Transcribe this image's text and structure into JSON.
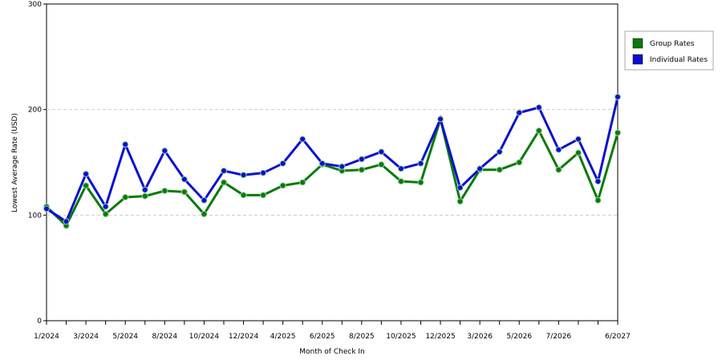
{
  "chart_data": {
    "type": "line",
    "x_label": "Month of Check In",
    "y_label": "Lowest Average Rate (USD)",
    "categories": [
      "1/2024",
      null,
      "3/2024",
      null,
      "5/2024",
      null,
      "8/2024",
      null,
      "10/2024",
      null,
      "12/2024",
      null,
      "4/2025",
      null,
      "6/2025",
      null,
      "8/2025",
      null,
      "10/2025",
      null,
      "12/2025",
      null,
      "3/2026",
      null,
      "5/2026",
      null,
      "7/2026",
      null,
      null,
      "6/2027"
    ],
    "series": [
      {
        "name": "Group Rates",
        "color": "#0a7a0a",
        "values": [
          108,
          90,
          128,
          101,
          117,
          118,
          123,
          122,
          101,
          131,
          119,
          119,
          128,
          131,
          148,
          142,
          143,
          148,
          132,
          131,
          191,
          113,
          143,
          143,
          150,
          180,
          143,
          159,
          114,
          178
        ]
      },
      {
        "name": "Individual Rates",
        "color": "#0a10d0",
        "values": [
          106,
          94,
          139,
          108,
          167,
          124,
          161,
          134,
          114,
          142,
          138,
          140,
          149,
          172,
          149,
          146,
          153,
          160,
          144,
          149,
          191,
          126,
          144,
          160,
          197,
          202,
          162,
          172,
          132,
          212
        ]
      }
    ],
    "ylim": [
      0,
      300
    ],
    "yticks": [
      0,
      100,
      200,
      300
    ],
    "grid": true,
    "legend": "top-right"
  }
}
